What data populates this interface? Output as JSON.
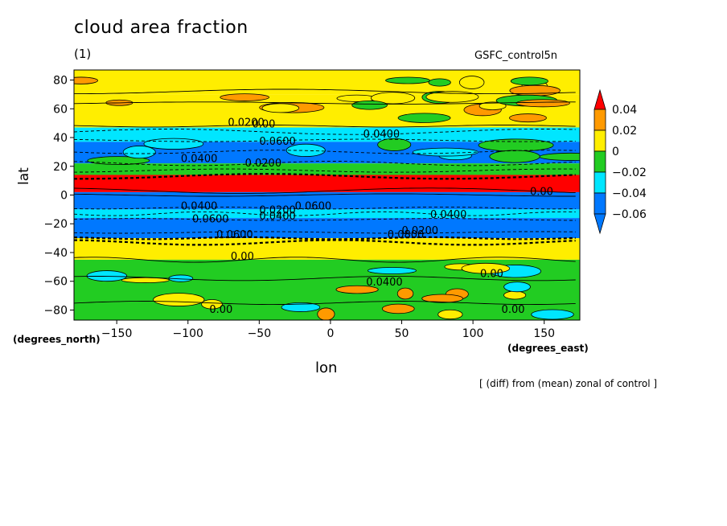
{
  "title": "cloud area fraction",
  "subtitle": "(1)",
  "run_label": "GSFC_control5n",
  "footnote": "[ (diff) from (mean) zonal of control ]",
  "chart_data": {
    "type": "heatmap",
    "title": "cloud area fraction",
    "xlabel": "lon",
    "ylabel": "lat",
    "x_units": "(degrees_east)",
    "y_units": "(degrees_north)",
    "xlim": [
      -180,
      175
    ],
    "ylim": [
      -87,
      87
    ],
    "x_ticks": [
      -150,
      -100,
      -50,
      0,
      50,
      100,
      150
    ],
    "y_ticks": [
      80,
      60,
      40,
      20,
      0,
      -20,
      -40,
      -60,
      -80
    ],
    "colorbar": {
      "levels": [
        -0.06,
        -0.04,
        -0.02,
        0,
        0.02,
        0.04
      ],
      "labels": [
        "0.04",
        "0.02",
        "0",
        "-0.02",
        "-0.04",
        "-0.06"
      ],
      "bins": [
        {
          "range": "> 0.04",
          "color": "#ff0000"
        },
        {
          "range": "0.02 to 0.04",
          "color": "#ff9a00"
        },
        {
          "range": "0 to 0.02",
          "color": "#ffee00"
        },
        {
          "range": "-0.02 to 0",
          "color": "#22cc22"
        },
        {
          "range": "-0.04 to -0.02",
          "color": "#00e6ff"
        },
        {
          "range": "< -0.06",
          "color": "#0078ff"
        }
      ]
    },
    "zonal_bands": [
      {
        "lat_range": [
          70,
          87
        ],
        "value": 0.01,
        "color": "#ffee00"
      },
      {
        "lat_range": [
          47,
          70
        ],
        "value": 0.01,
        "color": "#ffee00"
      },
      {
        "lat_range": [
          37,
          47
        ],
        "value": -0.03,
        "color": "#00e6ff"
      },
      {
        "lat_range": [
          22,
          37
        ],
        "value": -0.06,
        "color": "#0078ff"
      },
      {
        "lat_range": [
          14,
          22
        ],
        "value": -0.02,
        "color": "#22cc22"
      },
      {
        "lat_range": [
          2,
          14
        ],
        "value": 0.05,
        "color": "#ff0000"
      },
      {
        "lat_range": [
          -10,
          2
        ],
        "value": -0.07,
        "color": "#0078ff"
      },
      {
        "lat_range": [
          -16,
          -10
        ],
        "value": -0.04,
        "color": "#00e6ff"
      },
      {
        "lat_range": [
          -30,
          -16
        ],
        "value": -0.07,
        "color": "#0078ff"
      },
      {
        "lat_range": [
          -45,
          -30
        ],
        "value": 0.01,
        "color": "#ffee00"
      },
      {
        "lat_range": [
          -87,
          -45
        ],
        "value": -0.01,
        "color": "#22cc22"
      }
    ],
    "contour_labels": [
      "0.00",
      "0.0200",
      "0.00",
      "0.0400",
      "0.0600",
      "0.0200",
      "0.0400",
      "0.0200",
      "0.0400",
      "0.0600",
      "0.0400",
      "0.0600",
      "0.0400",
      "0.0200",
      "0.00",
      "0.0400",
      "0.0600",
      "0.0800",
      "0.00",
      "0.00",
      "0.00",
      "0.00"
    ]
  }
}
